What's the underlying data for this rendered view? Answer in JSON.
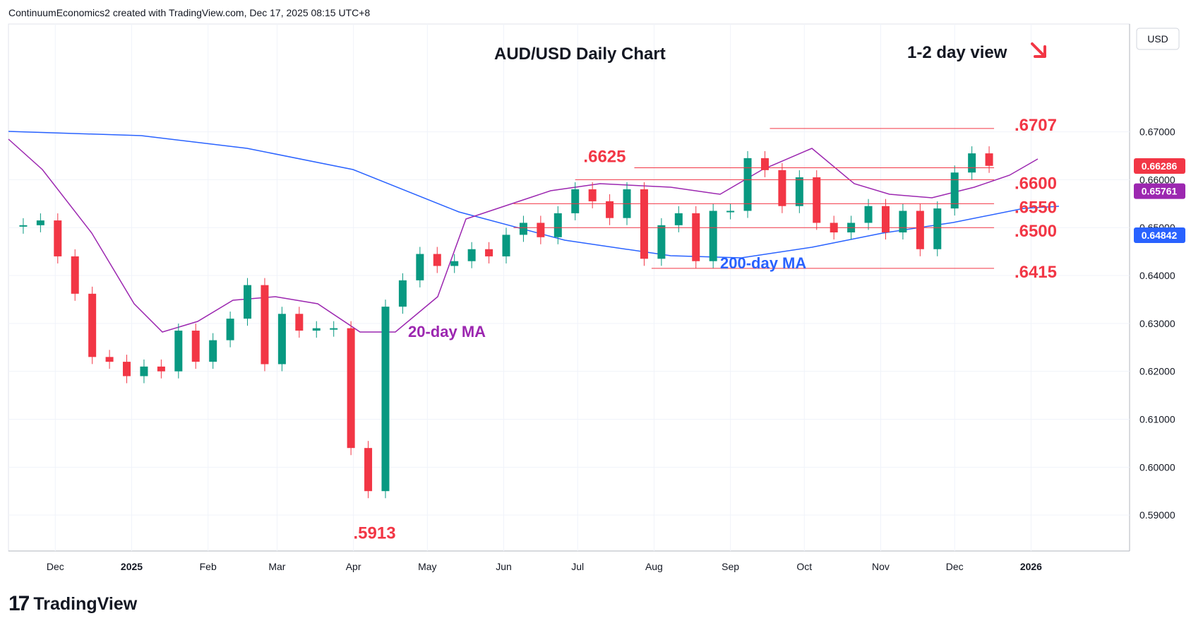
{
  "header": {
    "text": "ContinuumEconomics2 created with TradingView.com, Dec 17, 2025 08:15 UTC+8"
  },
  "footer": {
    "logo": "17",
    "text": "TradingView"
  },
  "chart_data": {
    "type": "candlestick",
    "title": "AUD/USD Daily Chart",
    "view_label": "1-2 day view",
    "view_direction": "down",
    "currency": "USD",
    "ylim": [
      0.5825,
      0.6925
    ],
    "y_ticks": [
      "0.67000",
      "0.66000",
      "0.65000",
      "0.64000",
      "0.63000",
      "0.62000",
      "0.61000",
      "0.60000",
      "0.59000"
    ],
    "x_ticks": [
      "Dec",
      "2025",
      "Feb",
      "Mar",
      "Apr",
      "May",
      "Jun",
      "Jul",
      "Aug",
      "Sep",
      "Oct",
      "Nov",
      "Dec",
      "2026"
    ],
    "x_tick_dates": [
      "2024-12-01",
      "2025-01-01",
      "2025-02-01",
      "2025-03-01",
      "2025-04-01",
      "2025-05-01",
      "2025-06-01",
      "2025-07-01",
      "2025-08-01",
      "2025-09-01",
      "2025-10-01",
      "2025-11-01",
      "2025-12-01",
      "2026-01-01"
    ],
    "levels": [
      {
        "label": ".6707",
        "value": 0.6707,
        "from": "2025-09-17",
        "to": "2025-12-17"
      },
      {
        "label": ".6625",
        "value": 0.6625,
        "from": "2025-07-24",
        "to": "2025-12-17"
      },
      {
        "label": ".6600",
        "value": 0.66,
        "from": "2025-06-30",
        "to": "2025-12-17"
      },
      {
        "label": ".6550",
        "value": 0.655,
        "from": "2025-06-05",
        "to": "2025-12-17"
      },
      {
        "label": ".6500",
        "value": 0.65,
        "from": "2025-06-05",
        "to": "2025-12-17"
      },
      {
        "label": ".6415",
        "value": 0.6415,
        "from": "2025-07-31",
        "to": "2025-12-17"
      }
    ],
    "low_label": {
      "label": ".5913",
      "value": 0.5913,
      "date": "2025-04-09"
    },
    "price_badges": [
      {
        "value": "0.66286",
        "color": "#f23645"
      },
      {
        "value": "0.65761",
        "color": "#9c27b0"
      },
      {
        "value": "0.64842",
        "color": "#2962ff"
      }
    ],
    "ma_labels": [
      {
        "label": "200-day MA",
        "color": "#2962ff"
      },
      {
        "label": "20-day MA",
        "color": "#9c27b0"
      }
    ],
    "candles": [
      {
        "date": "2024-11-18",
        "close": 0.6505
      },
      {
        "date": "2024-11-25",
        "close": 0.6515
      },
      {
        "date": "2024-12-02",
        "close": 0.644
      },
      {
        "date": "2024-12-09",
        "close": 0.6362
      },
      {
        "date": "2024-12-16",
        "close": 0.623
      },
      {
        "date": "2024-12-23",
        "close": 0.622
      },
      {
        "date": "2024-12-30",
        "close": 0.619
      },
      {
        "date": "2025-01-06",
        "close": 0.621
      },
      {
        "date": "2025-01-13",
        "close": 0.62
      },
      {
        "date": "2025-01-20",
        "close": 0.6285
      },
      {
        "date": "2025-01-27",
        "close": 0.622
      },
      {
        "date": "2025-02-03",
        "close": 0.6265
      },
      {
        "date": "2025-02-10",
        "close": 0.631
      },
      {
        "date": "2025-02-17",
        "close": 0.638
      },
      {
        "date": "2025-02-24",
        "close": 0.6215
      },
      {
        "date": "2025-03-03",
        "close": 0.632
      },
      {
        "date": "2025-03-10",
        "close": 0.6285
      },
      {
        "date": "2025-03-17",
        "close": 0.629
      },
      {
        "date": "2025-03-24",
        "close": 0.629
      },
      {
        "date": "2025-03-31",
        "close": 0.604
      },
      {
        "date": "2025-04-07",
        "close": 0.595
      },
      {
        "date": "2025-04-14",
        "close": 0.6335
      },
      {
        "date": "2025-04-21",
        "close": 0.639
      },
      {
        "date": "2025-04-28",
        "close": 0.6445
      },
      {
        "date": "2025-05-05",
        "close": 0.642
      },
      {
        "date": "2025-05-12",
        "close": 0.643
      },
      {
        "date": "2025-05-19",
        "close": 0.6455
      },
      {
        "date": "2025-05-26",
        "close": 0.644
      },
      {
        "date": "2025-06-02",
        "close": 0.6485
      },
      {
        "date": "2025-06-09",
        "close": 0.651
      },
      {
        "date": "2025-06-16",
        "close": 0.648
      },
      {
        "date": "2025-06-23",
        "close": 0.653
      },
      {
        "date": "2025-06-30",
        "close": 0.658
      },
      {
        "date": "2025-07-07",
        "close": 0.6555
      },
      {
        "date": "2025-07-14",
        "close": 0.652
      },
      {
        "date": "2025-07-21",
        "close": 0.658
      },
      {
        "date": "2025-07-28",
        "close": 0.6435
      },
      {
        "date": "2025-08-04",
        "close": 0.6505
      },
      {
        "date": "2025-08-11",
        "close": 0.653
      },
      {
        "date": "2025-08-18",
        "close": 0.643
      },
      {
        "date": "2025-08-25",
        "close": 0.6535
      },
      {
        "date": "2025-09-01",
        "close": 0.6535
      },
      {
        "date": "2025-09-08",
        "close": 0.6645
      },
      {
        "date": "2025-09-15",
        "close": 0.662
      },
      {
        "date": "2025-09-22",
        "close": 0.6545
      },
      {
        "date": "2025-09-29",
        "close": 0.6605
      },
      {
        "date": "2025-10-06",
        "close": 0.651
      },
      {
        "date": "2025-10-13",
        "close": 0.649
      },
      {
        "date": "2025-10-20",
        "close": 0.651
      },
      {
        "date": "2025-10-27",
        "close": 0.6545
      },
      {
        "date": "2025-11-03",
        "close": 0.649
      },
      {
        "date": "2025-11-10",
        "close": 0.6535
      },
      {
        "date": "2025-11-17",
        "close": 0.6455
      },
      {
        "date": "2025-11-24",
        "close": 0.654
      },
      {
        "date": "2025-12-01",
        "close": 0.6615
      },
      {
        "date": "2025-12-08",
        "close": 0.6655
      },
      {
        "date": "2025-12-15",
        "close": 0.6629
      }
    ]
  }
}
